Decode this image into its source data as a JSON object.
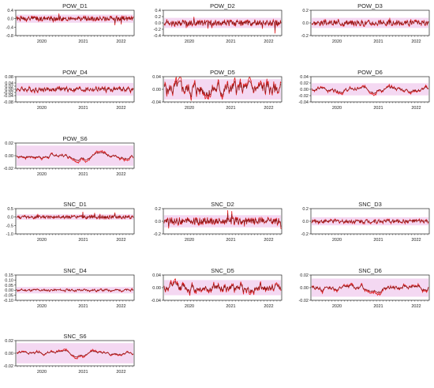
{
  "colors": {
    "band": "#f4d8f2",
    "signal": "#e31a1c",
    "trend": "#8b1a1a",
    "axis": "#000000"
  },
  "chart_data": [
    {
      "type": "line",
      "title": "POW_D1",
      "ylim": [
        -0.8,
        0.4
      ],
      "yticks": [
        "0.4",
        "0.0",
        "-0.4",
        "-0.8"
      ],
      "ytick_values": [
        0.4,
        0,
        -0.4,
        -0.8
      ],
      "xticks": [
        "2020",
        "2021",
        "2022"
      ],
      "amp": 0.12,
      "smooth": 0.12,
      "seed": 1
    },
    {
      "type": "line",
      "title": "POW_D2",
      "ylim": [
        -0.4,
        0.4
      ],
      "yticks": [
        "0.4",
        "0.2",
        "0.0",
        "-0.2",
        "-0.4"
      ],
      "ytick_values": [
        0.4,
        0.2,
        0,
        -0.2,
        -0.4
      ],
      "xticks": [
        "2020",
        "2021",
        "2022"
      ],
      "amp": 0.1,
      "smooth": 0.15,
      "seed": 2
    },
    {
      "type": "line",
      "title": "POW_D3",
      "ylim": [
        -0.2,
        0.2
      ],
      "yticks": [
        "0.2",
        "0.0",
        "-0.2"
      ],
      "ytick_values": [
        0.2,
        0,
        -0.2
      ],
      "xticks": [
        "2020",
        "2021",
        "2022"
      ],
      "amp": 0.05,
      "smooth": 0.25,
      "seed": 3
    },
    {
      "type": "line",
      "title": "POW_D4",
      "ylim": [
        -0.08,
        0.08
      ],
      "yticks": [
        "0.08",
        "0.04",
        "0.02",
        "0.00",
        "-0.02",
        "-0.04",
        "-0.08"
      ],
      "ytick_values": [
        0.08,
        0.04,
        0.02,
        0,
        -0.02,
        -0.04,
        -0.08
      ],
      "xticks": [
        "2020",
        "2021",
        "2022"
      ],
      "amp": 0.025,
      "smooth": 0.5,
      "seed": 4
    },
    {
      "type": "line",
      "title": "POW_D5",
      "ylim": [
        -0.04,
        0.04
      ],
      "yticks": [
        "0.04",
        "0.00",
        "-0.04"
      ],
      "ytick_values": [
        0.04,
        0,
        -0.04
      ],
      "xticks": [
        "2020",
        "2021",
        "2022"
      ],
      "amp": 0.02,
      "smooth": 0.75,
      "seed": 5
    },
    {
      "type": "line",
      "title": "POW_D6",
      "ylim": [
        -0.04,
        0.04
      ],
      "yticks": [
        "0.04",
        "0.02",
        "0.00",
        "-0.02",
        "-0.04"
      ],
      "ytick_values": [
        0.04,
        0.02,
        0,
        -0.02,
        -0.04
      ],
      "xticks": [
        "2020",
        "2021",
        "2022"
      ],
      "amp": 0.012,
      "smooth": 0.9,
      "seed": 6
    },
    {
      "type": "line",
      "title": "POW_S6",
      "ylim": [
        -0.02,
        0.02
      ],
      "yticks": [
        "0.02",
        "0.00",
        "-0.02"
      ],
      "ytick_values": [
        0.02,
        0,
        -0.02
      ],
      "xticks": [
        "2020",
        "2021",
        "2022"
      ],
      "amp": 0.01,
      "smooth": 0.95,
      "seed": 7
    },
    {
      "type": "line",
      "title": "SNC_D1",
      "ylim": [
        -1.0,
        0.5
      ],
      "yticks": [
        "0.5",
        "0.0",
        "-0.5",
        "-1.0"
      ],
      "ytick_values": [
        0.5,
        0,
        -0.5,
        -1.0
      ],
      "xticks": [
        "2020",
        "2021",
        "2022"
      ],
      "amp": 0.1,
      "smooth": 0.12,
      "seed": 8
    },
    {
      "type": "line",
      "title": "SNC_D2",
      "ylim": [
        -0.2,
        0.2
      ],
      "yticks": [
        "0.2",
        "0.0",
        "-0.2"
      ],
      "ytick_values": [
        0.2,
        0,
        -0.2
      ],
      "xticks": [
        "2020",
        "2021",
        "2022"
      ],
      "amp": 0.06,
      "smooth": 0.15,
      "seed": 9
    },
    {
      "type": "line",
      "title": "SNC_D3",
      "ylim": [
        -0.2,
        0.2
      ],
      "yticks": [
        "0.2",
        "0.0",
        "-0.2"
      ],
      "ytick_values": [
        0.2,
        0,
        -0.2
      ],
      "xticks": [
        "2020",
        "2021",
        "2022"
      ],
      "amp": 0.04,
      "smooth": 0.3,
      "seed": 10
    },
    {
      "type": "line",
      "title": "SNC_D4",
      "ylim": [
        -0.1,
        0.15
      ],
      "yticks": [
        "0.15",
        "0.10",
        "0.05",
        "0.00",
        "-0.05",
        "-0.10"
      ],
      "ytick_values": [
        0.15,
        0.1,
        0.05,
        0,
        -0.05,
        -0.1
      ],
      "xticks": [
        "2020",
        "2021",
        "2022"
      ],
      "amp": 0.02,
      "smooth": 0.55,
      "seed": 11
    },
    {
      "type": "line",
      "title": "SNC_D5",
      "ylim": [
        -0.04,
        0.04
      ],
      "yticks": [
        "0.04",
        "0.00",
        "-0.04"
      ],
      "ytick_values": [
        0.04,
        0,
        -0.04
      ],
      "xticks": [
        "2020",
        "2021",
        "2022"
      ],
      "amp": 0.015,
      "smooth": 0.8,
      "seed": 12
    },
    {
      "type": "line",
      "title": "SNC_D6",
      "ylim": [
        -0.02,
        0.02
      ],
      "yticks": [
        "0.02",
        "0.00",
        "-0.02"
      ],
      "ytick_values": [
        0.02,
        0,
        -0.02
      ],
      "xticks": [
        "2020",
        "2021",
        "2022"
      ],
      "amp": 0.009,
      "smooth": 0.92,
      "seed": 13
    },
    {
      "type": "line",
      "title": "SNC_S6",
      "ylim": [
        -0.02,
        0.02
      ],
      "yticks": [
        "0.02",
        "0.00",
        "-0.02"
      ],
      "ytick_values": [
        0.02,
        0,
        -0.02
      ],
      "xticks": [
        "2020",
        "2021",
        "2022"
      ],
      "amp": 0.01,
      "smooth": 0.96,
      "seed": 14
    }
  ]
}
